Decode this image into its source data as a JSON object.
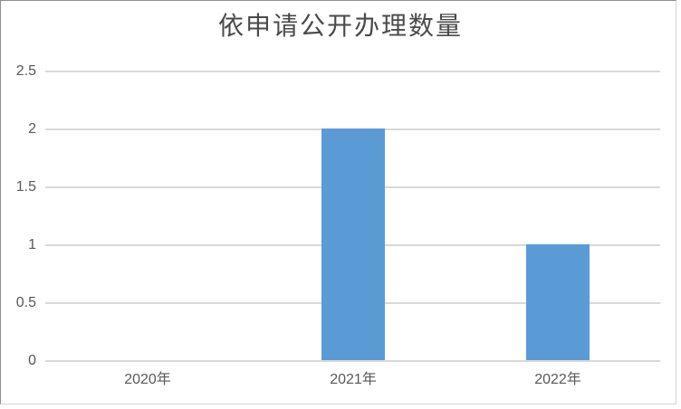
{
  "chart_data": {
    "type": "bar",
    "title": "依申请公开办理数量",
    "categories": [
      "2020年",
      "2021年",
      "2022年"
    ],
    "values": [
      0,
      2,
      1
    ],
    "xlabel": "",
    "ylabel": "",
    "ylim": [
      0,
      2.5
    ],
    "yticks": [
      0,
      0.5,
      1,
      1.5,
      2,
      2.5
    ],
    "ytick_labels": [
      "0",
      "0.5",
      "1",
      "1.5",
      "2",
      "2.5"
    ],
    "grid": true,
    "legend": "none",
    "bar_color": "#5B9BD5",
    "gridline_color": "#D9D9D9",
    "axis_label_color": "#595959",
    "title_color": "#4A4A4A",
    "background_color": "#FFFFFF",
    "frame_border_color": "#8F8F8F"
  }
}
